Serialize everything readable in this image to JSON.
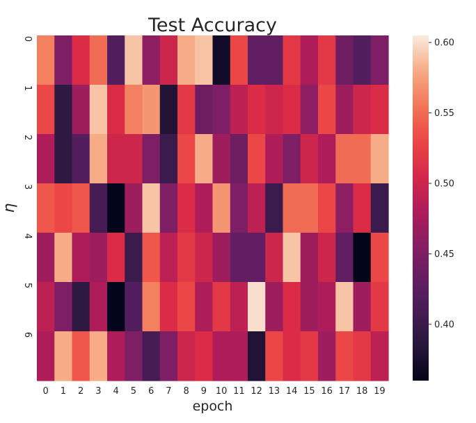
{
  "chart_data": {
    "type": "heatmap",
    "title": "Test Accuracy",
    "xlabel": "epoch",
    "ylabel": "η",
    "x_categories": [
      "0",
      "1",
      "2",
      "3",
      "4",
      "5",
      "6",
      "7",
      "8",
      "9",
      "10",
      "11",
      "12",
      "13",
      "14",
      "15",
      "16",
      "17",
      "18",
      "19"
    ],
    "y_categories": [
      "0",
      "1",
      "2",
      "3",
      "4",
      "5",
      "6"
    ],
    "values": [
      [
        0.56,
        0.45,
        0.51,
        0.55,
        0.42,
        0.59,
        0.46,
        0.5,
        0.58,
        0.59,
        0.37,
        0.53,
        0.43,
        0.43,
        0.52,
        0.48,
        0.52,
        0.44,
        0.42,
        0.45
      ],
      [
        0.53,
        0.39,
        0.47,
        0.59,
        0.51,
        0.56,
        0.57,
        0.38,
        0.52,
        0.44,
        0.45,
        0.49,
        0.51,
        0.5,
        0.51,
        0.46,
        0.53,
        0.47,
        0.5,
        0.51
      ],
      [
        0.48,
        0.39,
        0.42,
        0.58,
        0.5,
        0.5,
        0.45,
        0.4,
        0.53,
        0.58,
        0.47,
        0.44,
        0.53,
        0.48,
        0.45,
        0.5,
        0.48,
        0.55,
        0.55,
        0.58
      ],
      [
        0.54,
        0.53,
        0.54,
        0.41,
        0.36,
        0.47,
        0.59,
        0.45,
        0.51,
        0.48,
        0.57,
        0.45,
        0.49,
        0.4,
        0.55,
        0.55,
        0.53,
        0.46,
        0.51,
        0.4
      ],
      [
        0.47,
        0.58,
        0.48,
        0.47,
        0.51,
        0.4,
        0.54,
        0.49,
        0.52,
        0.5,
        0.47,
        0.43,
        0.43,
        0.5,
        0.59,
        0.47,
        0.5,
        0.43,
        0.36,
        0.53
      ],
      [
        0.49,
        0.45,
        0.39,
        0.48,
        0.36,
        0.42,
        0.56,
        0.51,
        0.53,
        0.48,
        0.52,
        0.49,
        0.6,
        0.47,
        0.51,
        0.47,
        0.48,
        0.59,
        0.47,
        0.52
      ],
      [
        0.48,
        0.58,
        0.54,
        0.58,
        0.48,
        0.45,
        0.41,
        0.45,
        0.5,
        0.51,
        0.48,
        0.48,
        0.38,
        0.53,
        0.51,
        0.52,
        0.47,
        0.53,
        0.52,
        0.49
      ]
    ],
    "colorbar": {
      "min": 0.36,
      "max": 0.605,
      "ticks": [
        "0.40",
        "0.45",
        "0.50",
        "0.55",
        "0.60"
      ],
      "colormap": "rocket"
    },
    "grid": false,
    "legend": "colorbar-right"
  }
}
